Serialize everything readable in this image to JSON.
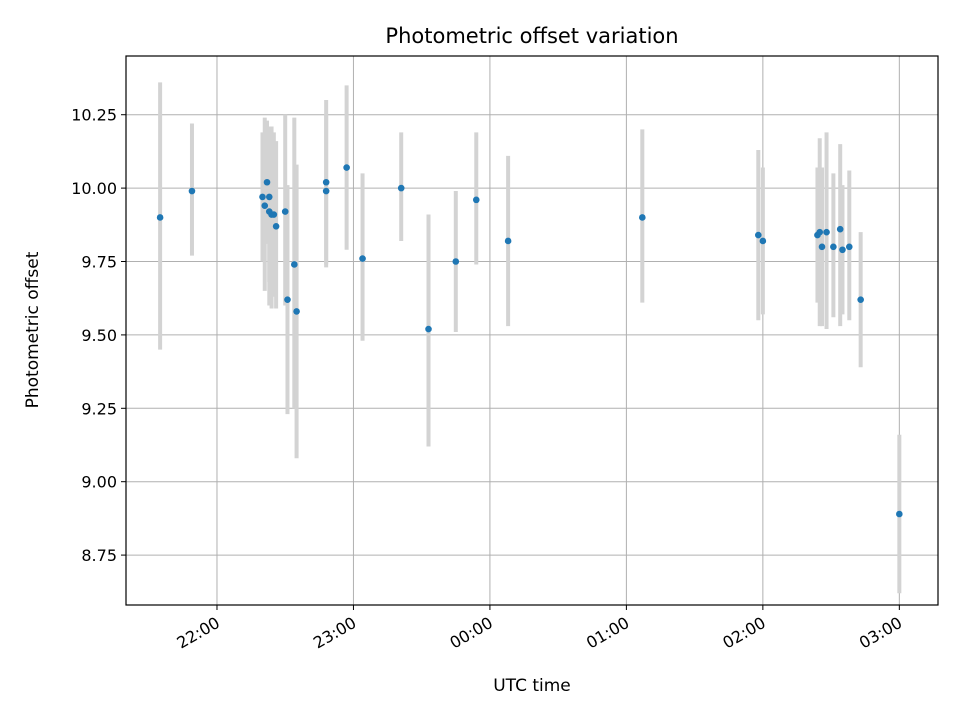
{
  "chart_data": {
    "type": "scatter",
    "title": "Photometric offset variation",
    "xlabel": "UTC time",
    "ylabel": "Photometric offset",
    "x_ticks": [
      "22:00",
      "23:00",
      "00:00",
      "01:00",
      "02:00",
      "03:00"
    ],
    "y_ticks": [
      "8.75",
      "9.00",
      "9.25",
      "9.50",
      "9.75",
      "10.00",
      "10.25"
    ],
    "xlim": [
      "21:20",
      "03:17"
    ],
    "ylim": [
      8.58,
      10.45
    ],
    "grid": true,
    "colors": {
      "point": "#1f77b4",
      "errorbar": "#d3d3d3",
      "grid": "#b0b0b0"
    },
    "points": [
      {
        "time": "21:35",
        "y": 9.9,
        "err_low": 9.45,
        "err_high": 10.36
      },
      {
        "time": "21:49",
        "y": 9.99,
        "err_low": 9.77,
        "err_high": 10.22
      },
      {
        "time": "22:20",
        "y": 9.97,
        "err_low": 9.75,
        "err_high": 10.19
      },
      {
        "time": "22:21",
        "y": 9.94,
        "err_low": 9.65,
        "err_high": 10.24
      },
      {
        "time": "22:22",
        "y": 10.02,
        "err_low": 9.81,
        "err_high": 10.23
      },
      {
        "time": "22:23",
        "y": 9.97,
        "err_low": 9.68,
        "err_high": 10.21
      },
      {
        "time": "22:23",
        "y": 9.92,
        "err_low": 9.6,
        "err_high": 10.2
      },
      {
        "time": "22:24",
        "y": 9.91,
        "err_low": 9.59,
        "err_high": 10.21
      },
      {
        "time": "22:25",
        "y": 9.91,
        "err_low": 9.63,
        "err_high": 10.19
      },
      {
        "time": "22:26",
        "y": 9.87,
        "err_low": 9.59,
        "err_high": 10.16
      },
      {
        "time": "22:30",
        "y": 9.92,
        "err_low": 9.6,
        "err_high": 10.25
      },
      {
        "time": "22:31",
        "y": 9.62,
        "err_low": 9.23,
        "err_high": 10.01
      },
      {
        "time": "22:34",
        "y": 9.74,
        "err_low": 9.25,
        "err_high": 10.24
      },
      {
        "time": "22:35",
        "y": 9.58,
        "err_low": 9.08,
        "err_high": 10.08
      },
      {
        "time": "22:48",
        "y": 10.02,
        "err_low": 9.74,
        "err_high": 10.3
      },
      {
        "time": "22:48",
        "y": 9.99,
        "err_low": 9.73,
        "err_high": 10.25
      },
      {
        "time": "22:57",
        "y": 10.07,
        "err_low": 9.79,
        "err_high": 10.35
      },
      {
        "time": "23:04",
        "y": 9.76,
        "err_low": 9.48,
        "err_high": 10.05
      },
      {
        "time": "23:21",
        "y": 10.0,
        "err_low": 9.82,
        "err_high": 10.19
      },
      {
        "time": "23:33",
        "y": 9.52,
        "err_low": 9.12,
        "err_high": 9.91
      },
      {
        "time": "23:45",
        "y": 9.75,
        "err_low": 9.51,
        "err_high": 9.99
      },
      {
        "time": "23:54",
        "y": 9.96,
        "err_low": 9.74,
        "err_high": 10.19
      },
      {
        "time": "00:08",
        "y": 9.82,
        "err_low": 9.53,
        "err_high": 10.11
      },
      {
        "time": "01:07",
        "y": 9.9,
        "err_low": 9.61,
        "err_high": 10.2
      },
      {
        "time": "01:58",
        "y": 9.84,
        "err_low": 9.55,
        "err_high": 10.13
      },
      {
        "time": "02:00",
        "y": 9.82,
        "err_low": 9.57,
        "err_high": 10.07
      },
      {
        "time": "02:24",
        "y": 9.84,
        "err_low": 9.61,
        "err_high": 10.07
      },
      {
        "time": "02:25",
        "y": 9.85,
        "err_low": 9.53,
        "err_high": 10.17
      },
      {
        "time": "02:26",
        "y": 9.8,
        "err_low": 9.53,
        "err_high": 10.07
      },
      {
        "time": "02:28",
        "y": 9.85,
        "err_low": 9.52,
        "err_high": 10.19
      },
      {
        "time": "02:31",
        "y": 9.8,
        "err_low": 9.56,
        "err_high": 10.05
      },
      {
        "time": "02:34",
        "y": 9.86,
        "err_low": 9.53,
        "err_high": 10.15
      },
      {
        "time": "02:35",
        "y": 9.79,
        "err_low": 9.57,
        "err_high": 10.01
      },
      {
        "time": "02:38",
        "y": 9.8,
        "err_low": 9.55,
        "err_high": 10.06
      },
      {
        "time": "02:43",
        "y": 9.62,
        "err_low": 9.39,
        "err_high": 9.85
      },
      {
        "time": "03:00",
        "y": 8.89,
        "err_low": 8.62,
        "err_high": 9.16
      }
    ]
  }
}
